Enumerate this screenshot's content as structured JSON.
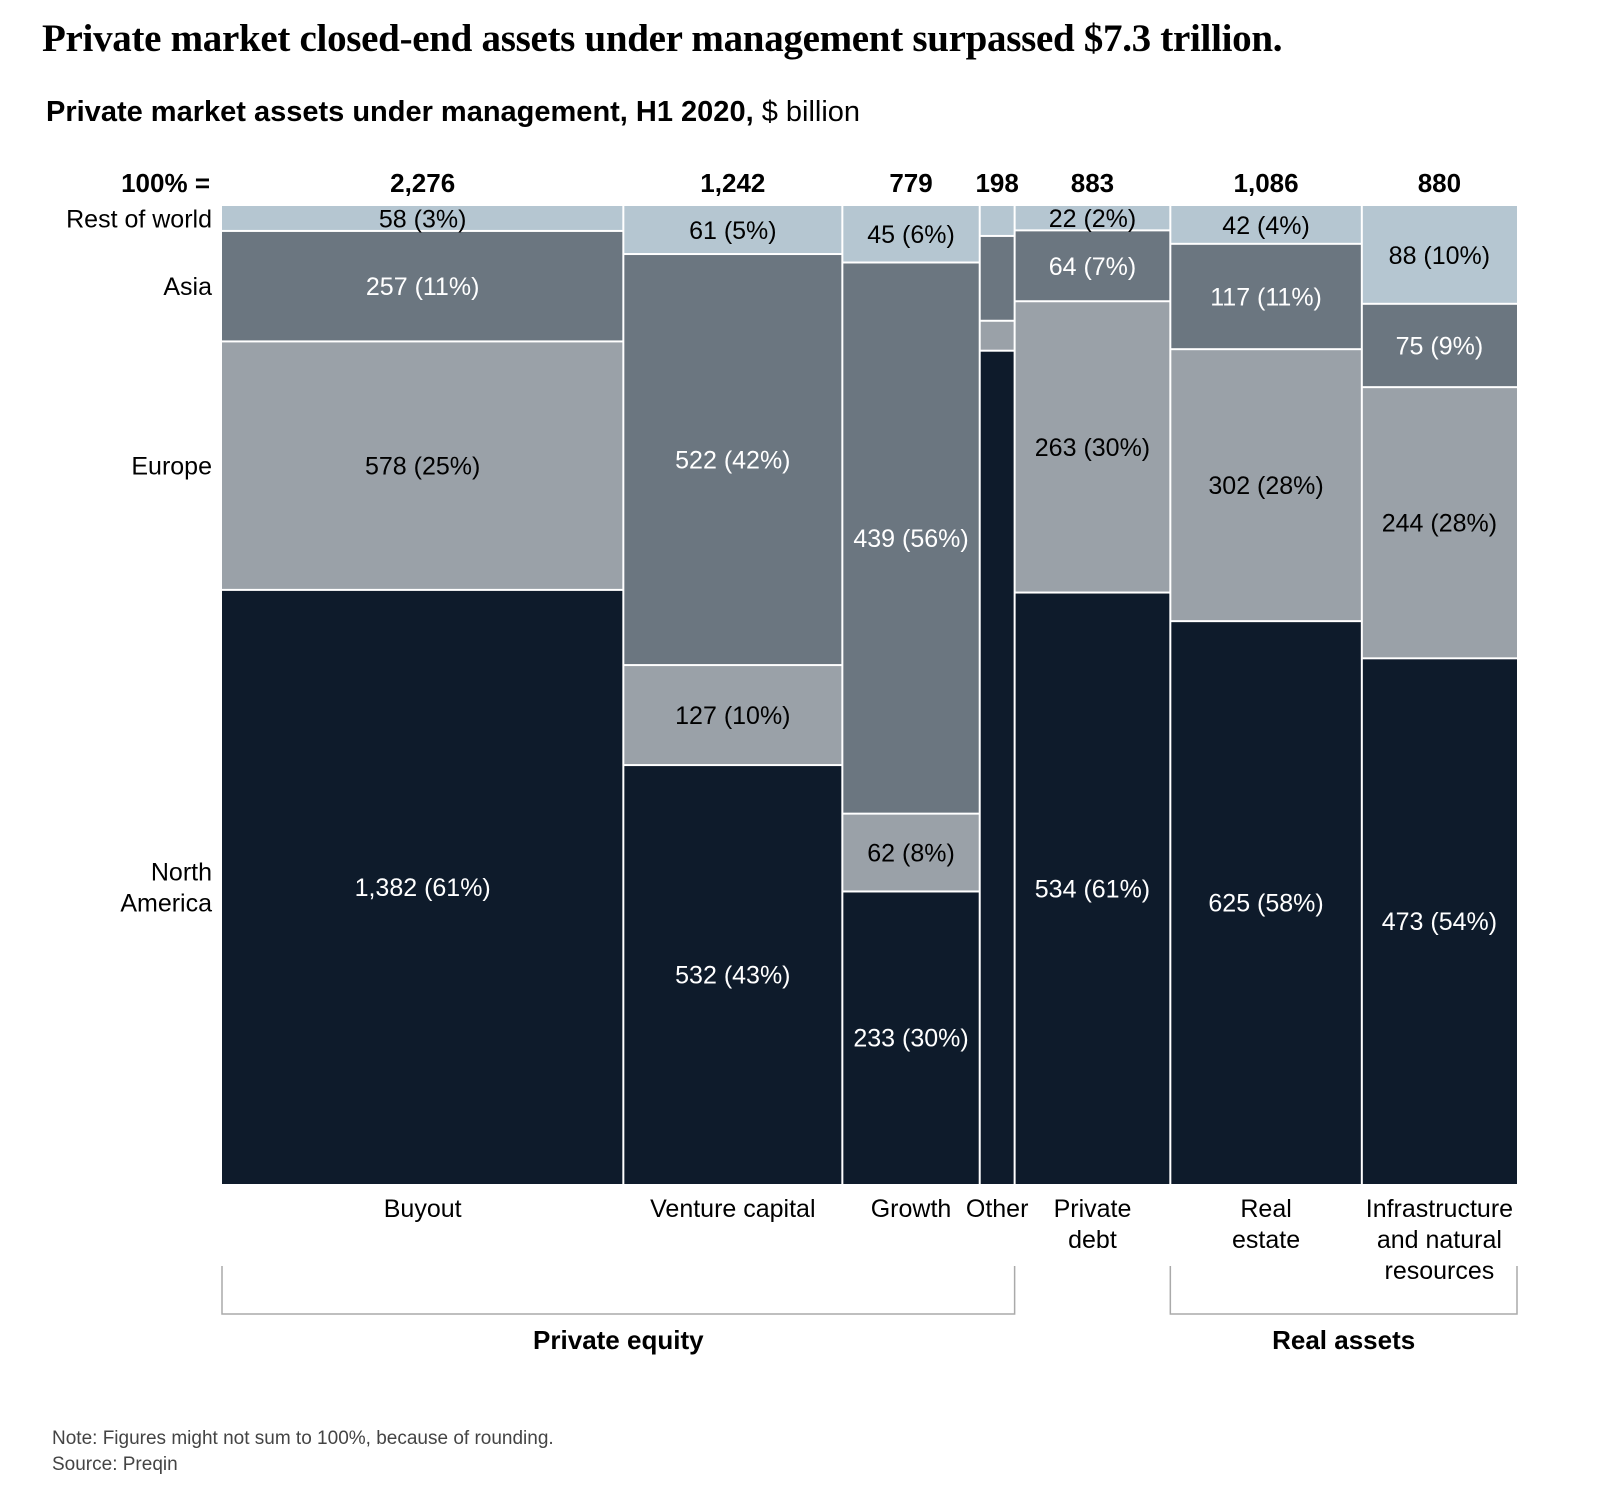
{
  "title": "Private market closed-end assets under management surpassed $7.3 trillion.",
  "subtitle": "Private market assets under management, H1 2020,",
  "subtitle_unit": "$ billion",
  "note": "Note: Figures might not sum to 100%, because of rounding.",
  "source": "Source: Preqin",
  "chart_data": {
    "type": "marimekko",
    "total_label": "100% =",
    "region_labels": [
      "Rest of world",
      "Asia",
      "Europe",
      "North America"
    ],
    "colors": {
      "Rest of world": "#b5c6d1",
      "Asia": "#6b7680",
      "Europe": "#9aa1a8",
      "North America": "#0e1b2b"
    },
    "columns": [
      {
        "category": "Buyout",
        "total": 2276,
        "total_label": "2,276",
        "segments": [
          {
            "region": "North America",
            "value": 1382,
            "label": "1,382 (61%)"
          },
          {
            "region": "Europe",
            "value": 578,
            "label": "578 (25%)"
          },
          {
            "region": "Asia",
            "value": 257,
            "label": "257 (11%)"
          },
          {
            "region": "Rest of world",
            "value": 58,
            "label": "58 (3%)"
          }
        ]
      },
      {
        "category": "Venture capital",
        "total": 1242,
        "total_label": "1,242",
        "segments": [
          {
            "region": "North America",
            "value": 532,
            "label": "532 (43%)"
          },
          {
            "region": "Europe",
            "value": 127,
            "label": "127 (10%)"
          },
          {
            "region": "Asia",
            "value": 522,
            "label": "522 (42%)"
          },
          {
            "region": "Rest of world",
            "value": 61,
            "label": "61 (5%)"
          }
        ]
      },
      {
        "category": "Growth",
        "total": 779,
        "total_label": "779",
        "segments": [
          {
            "region": "North America",
            "value": 233,
            "label": "233 (30%)"
          },
          {
            "region": "Europe",
            "value": 62,
            "label": "62 (8%)"
          },
          {
            "region": "Asia",
            "value": 439,
            "label": "439 (56%)"
          },
          {
            "region": "Rest of world",
            "value": 45,
            "label": "45 (6%)"
          }
        ]
      },
      {
        "category": "Other",
        "total": 198,
        "total_label": "198",
        "segments": [
          {
            "region": "North America",
            "value": 167,
            "label": ""
          },
          {
            "region": "Europe",
            "value": 6,
            "label": ""
          },
          {
            "region": "Asia",
            "value": 17,
            "label": ""
          },
          {
            "region": "Rest of world",
            "value": 6,
            "label": ""
          }
        ]
      },
      {
        "category": "Private debt",
        "total": 883,
        "total_label": "883",
        "segments": [
          {
            "region": "North America",
            "value": 534,
            "label": "534 (61%)"
          },
          {
            "region": "Europe",
            "value": 263,
            "label": "263 (30%)"
          },
          {
            "region": "Asia",
            "value": 64,
            "label": "64 (7%)"
          },
          {
            "region": "Rest of world",
            "value": 22,
            "label": "22 (2%)"
          }
        ]
      },
      {
        "category": "Real estate",
        "total": 1086,
        "total_label": "1,086",
        "segments": [
          {
            "region": "North America",
            "value": 625,
            "label": "625 (58%)"
          },
          {
            "region": "Europe",
            "value": 302,
            "label": "302 (28%)"
          },
          {
            "region": "Asia",
            "value": 117,
            "label": "117 (11%)"
          },
          {
            "region": "Rest of world",
            "value": 42,
            "label": "42 (4%)"
          }
        ]
      },
      {
        "category": "Infrastructure and natural resources",
        "total": 880,
        "total_label": "880",
        "segments": [
          {
            "region": "North America",
            "value": 473,
            "label": "473 (54%)"
          },
          {
            "region": "Europe",
            "value": 244,
            "label": "244 (28%)"
          },
          {
            "region": "Asia",
            "value": 75,
            "label": "75 (9%)"
          },
          {
            "region": "Rest of world",
            "value": 88,
            "label": "88 (10%)"
          }
        ]
      }
    ],
    "x_labels": [
      [
        "Buyout"
      ],
      [
        "Venture capital"
      ],
      [
        "Growth"
      ],
      [
        "Other"
      ],
      [
        "Private",
        "debt"
      ],
      [
        "Real",
        "estate"
      ],
      [
        "Infrastructure",
        "and natural",
        "resources"
      ]
    ],
    "groups": [
      {
        "label": "Private equity",
        "from": 0,
        "to": 3
      },
      {
        "label": "Real assets",
        "from": 5,
        "to": 6
      }
    ]
  }
}
